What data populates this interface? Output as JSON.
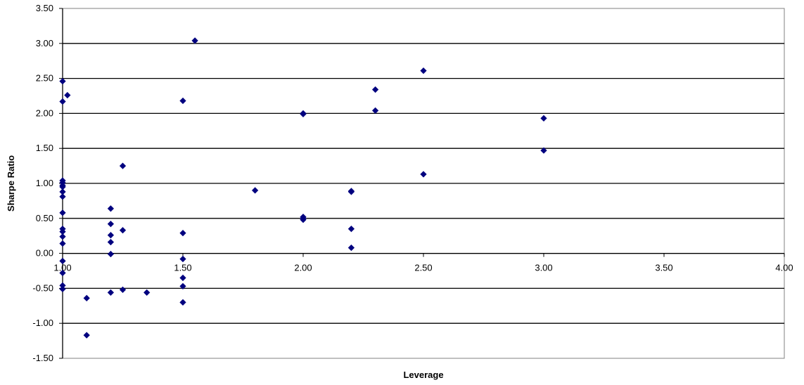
{
  "chart_data": {
    "type": "scatter",
    "title": "",
    "xlabel": "Leverage",
    "ylabel": "Sharpe Ratio",
    "xlim": [
      1.0,
      4.0
    ],
    "ylim": [
      -1.5,
      3.5
    ],
    "x_ticks": [
      "1.00",
      "1.50",
      "2.00",
      "2.50",
      "3.00",
      "3.50",
      "4.00"
    ],
    "y_ticks": [
      "3.50",
      "3.00",
      "2.50",
      "2.00",
      "1.50",
      "1.00",
      "0.50",
      "0.00",
      "-0.50",
      "-1.00",
      "-1.50"
    ],
    "grid": "horizontal",
    "legend": "none",
    "marker": "diamond",
    "colors": {
      "marker": "#00007f",
      "grid": "#000000",
      "plot_border": "#808080"
    },
    "series": [
      {
        "points": [
          [
            1.0,
            2.46
          ],
          [
            1.0,
            2.17
          ],
          [
            1.02,
            2.26
          ],
          [
            1.0,
            1.04
          ],
          [
            1.0,
            1.01
          ],
          [
            1.0,
            0.97
          ],
          [
            1.0,
            0.95
          ],
          [
            1.0,
            0.88
          ],
          [
            1.0,
            0.81
          ],
          [
            1.0,
            0.58
          ],
          [
            1.0,
            0.35
          ],
          [
            1.0,
            0.31
          ],
          [
            1.0,
            0.24
          ],
          [
            1.0,
            0.14
          ],
          [
            1.0,
            -0.11
          ],
          [
            1.0,
            -0.28
          ],
          [
            1.0,
            -0.46
          ],
          [
            1.0,
            -0.51
          ],
          [
            1.1,
            -0.64
          ],
          [
            1.1,
            -1.17
          ],
          [
            1.2,
            0.64
          ],
          [
            1.2,
            0.42
          ],
          [
            1.2,
            0.26
          ],
          [
            1.2,
            0.16
          ],
          [
            1.2,
            -0.01
          ],
          [
            1.2,
            -0.56
          ],
          [
            1.25,
            1.25
          ],
          [
            1.25,
            0.33
          ],
          [
            1.25,
            -0.52
          ],
          [
            1.35,
            -0.56
          ],
          [
            1.5,
            2.18
          ],
          [
            1.5,
            0.29
          ],
          [
            1.5,
            -0.08
          ],
          [
            1.5,
            -0.35
          ],
          [
            1.5,
            -0.47
          ],
          [
            1.5,
            -0.7
          ],
          [
            1.55,
            3.04
          ],
          [
            1.8,
            0.9
          ],
          [
            2.0,
            2.0
          ],
          [
            2.0,
            1.99
          ],
          [
            2.0,
            0.52
          ],
          [
            2.0,
            0.5
          ],
          [
            2.0,
            0.48
          ],
          [
            2.2,
            0.89
          ],
          [
            2.2,
            0.88
          ],
          [
            2.2,
            0.35
          ],
          [
            2.2,
            0.08
          ],
          [
            2.3,
            2.34
          ],
          [
            2.3,
            2.04
          ],
          [
            2.5,
            2.61
          ],
          [
            2.5,
            1.13
          ],
          [
            3.0,
            1.93
          ],
          [
            3.0,
            1.47
          ]
        ]
      }
    ]
  }
}
